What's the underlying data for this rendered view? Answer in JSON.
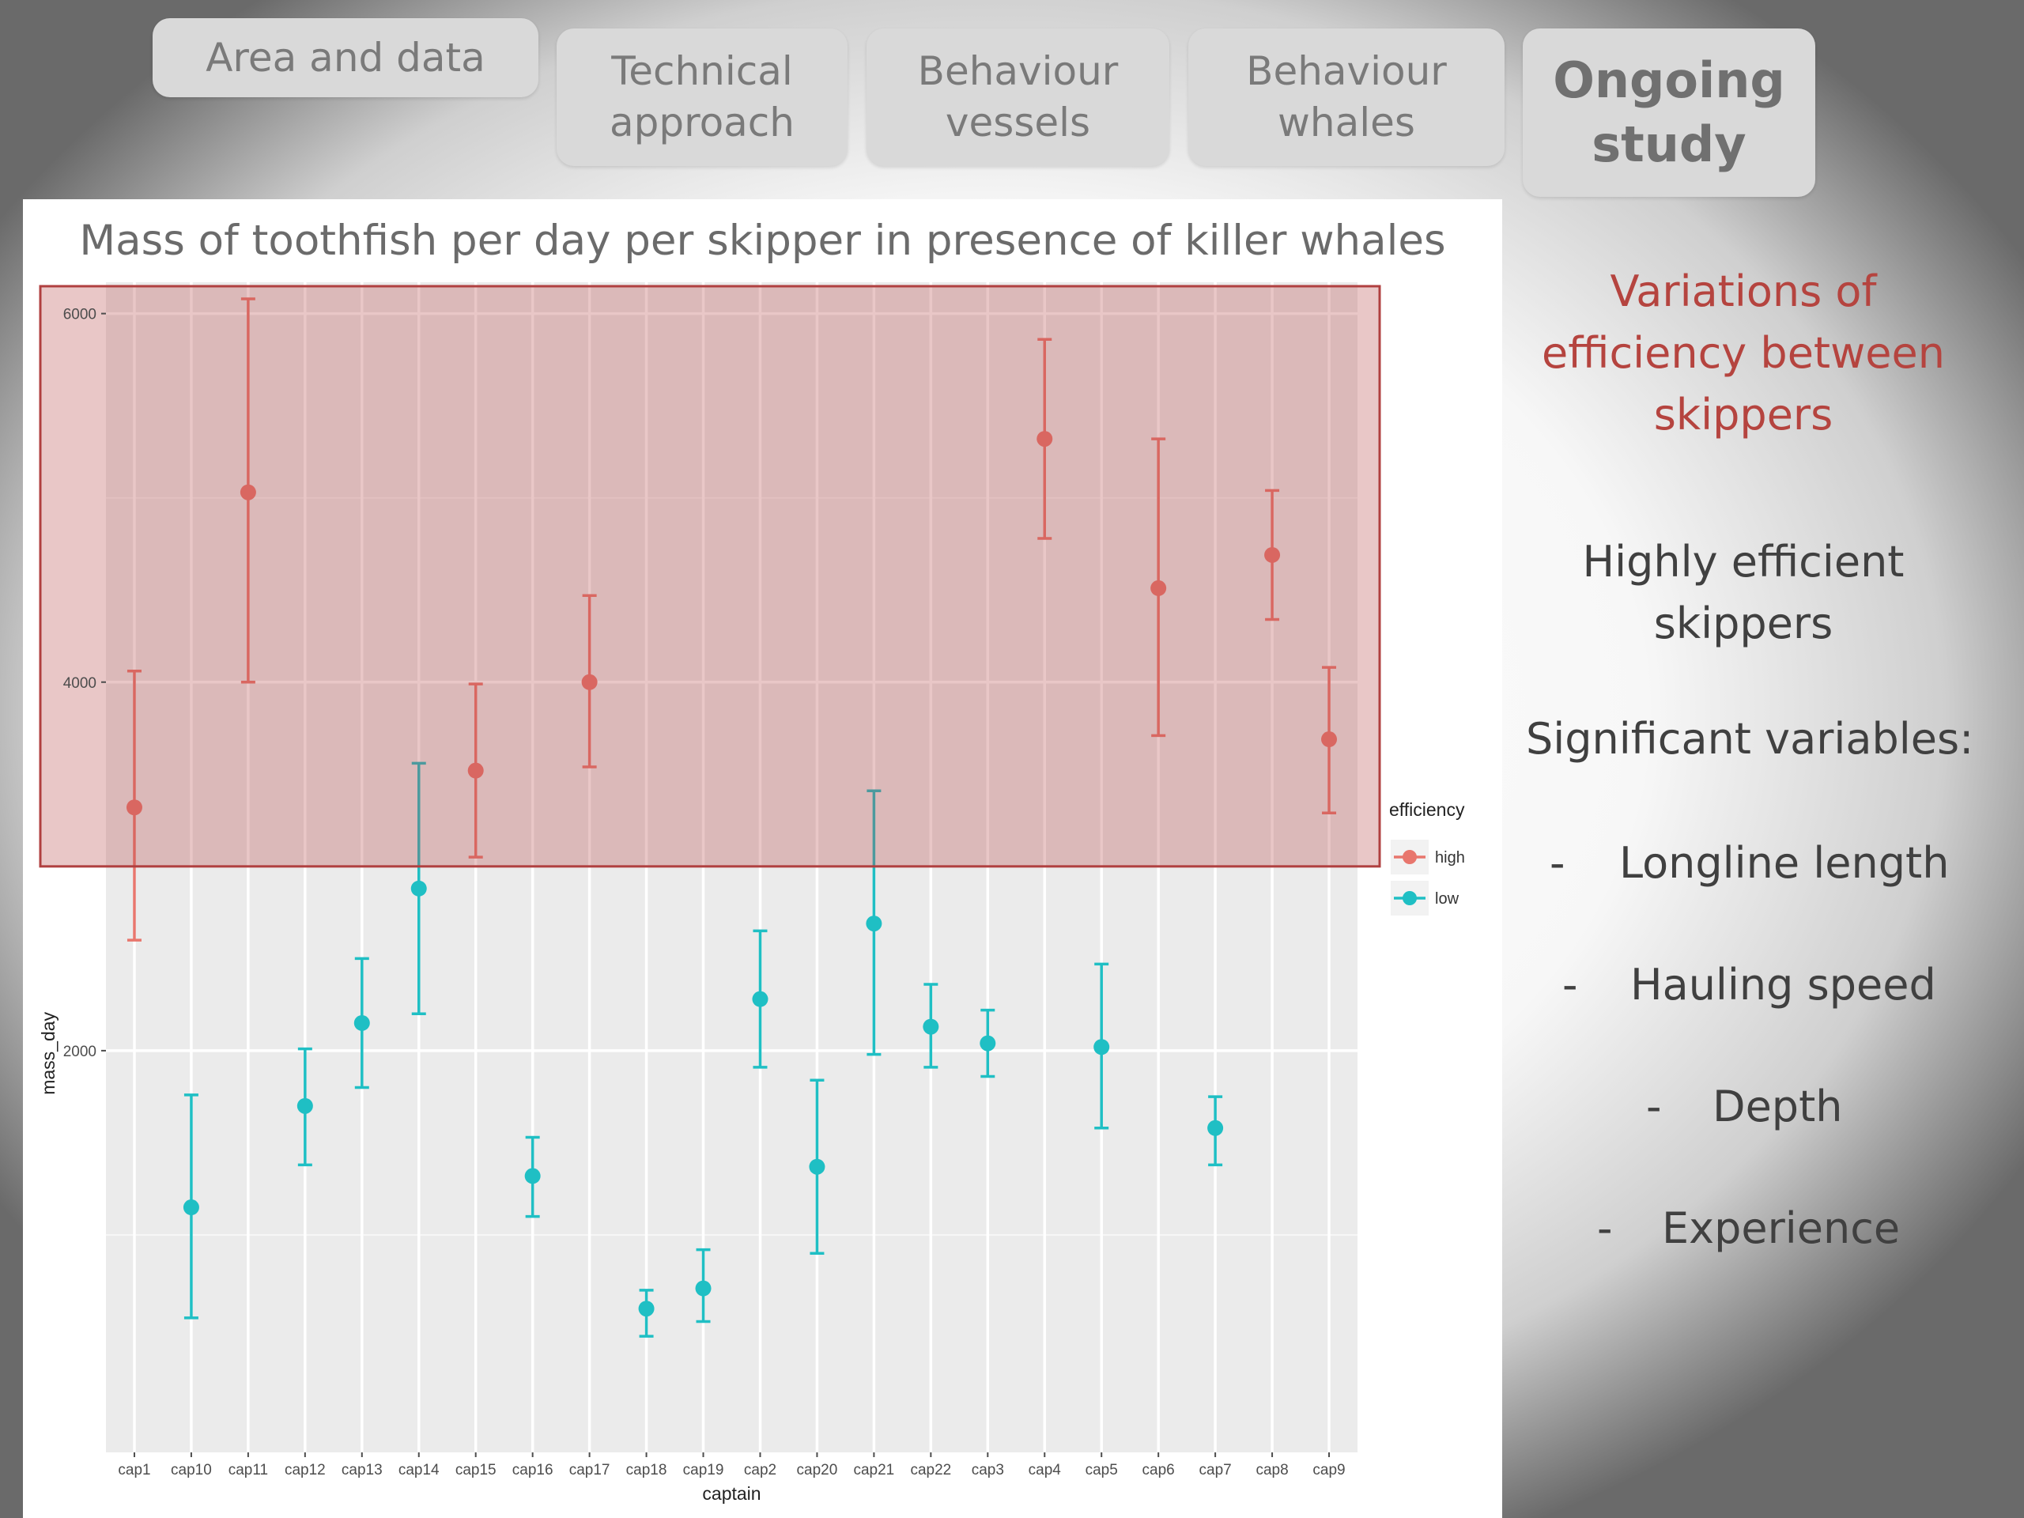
{
  "nav": {
    "tabs": [
      {
        "label": "Area and data",
        "active": false
      },
      {
        "label": "Technical\napproach",
        "active": false
      },
      {
        "label": "Behaviour\nvessels",
        "active": false
      },
      {
        "label": "Behaviour\nwhales",
        "active": false
      },
      {
        "label": "Ongoing\nstudy",
        "active": true
      }
    ]
  },
  "side": {
    "heading": "Variations of efficiency between skippers",
    "subheading": "Highly efficient skippers",
    "variables_label": "Significant variables:",
    "bullets": [
      "Longline length",
      "Hauling speed",
      "Depth",
      "Experience"
    ],
    "dash": "-"
  },
  "chart_data": {
    "type": "scatter",
    "title": "Mass of toothfish per day per skipper in presence of killer whales",
    "xlabel": "captain",
    "ylabel": "mass_day",
    "categories": [
      "cap1",
      "cap10",
      "cap11",
      "cap12",
      "cap13",
      "cap14",
      "cap15",
      "cap16",
      "cap17",
      "cap18",
      "cap19",
      "cap2",
      "cap20",
      "cap21",
      "cap22",
      "cap3",
      "cap4",
      "cap5",
      "cap6",
      "cap7",
      "cap8",
      "cap9"
    ],
    "ylim": [
      -180,
      6170
    ],
    "yticks": [
      2000,
      4000,
      6000
    ],
    "grid": true,
    "legend": {
      "title": "efficiency",
      "position": "right",
      "entries": [
        "high",
        "low"
      ]
    },
    "colors": {
      "high": "#e8766d",
      "low": "#1fbfc4"
    },
    "series": [
      {
        "name": "high",
        "points": [
          {
            "x": "cap1",
            "y": 3320,
            "low": 2600,
            "high": 4060
          },
          {
            "x": "cap11",
            "y": 5030,
            "low": 4000,
            "high": 6080
          },
          {
            "x": "cap15",
            "y": 3520,
            "low": 3050,
            "high": 3990
          },
          {
            "x": "cap17",
            "y": 4000,
            "low": 3540,
            "high": 4470
          },
          {
            "x": "cap4",
            "y": 5320,
            "low": 4780,
            "high": 5860
          },
          {
            "x": "cap6",
            "y": 4510,
            "low": 3710,
            "high": 5320
          },
          {
            "x": "cap8",
            "y": 4690,
            "low": 4340,
            "high": 5040
          },
          {
            "x": "cap9",
            "y": 3690,
            "low": 3290,
            "high": 4080
          }
        ]
      },
      {
        "name": "low",
        "points": [
          {
            "x": "cap10",
            "y": 1150,
            "low": 550,
            "high": 1760
          },
          {
            "x": "cap12",
            "y": 1700,
            "low": 1380,
            "high": 2010
          },
          {
            "x": "cap13",
            "y": 2150,
            "low": 1800,
            "high": 2500
          },
          {
            "x": "cap14",
            "y": 2880,
            "low": 2200,
            "high": 3560
          },
          {
            "x": "cap16",
            "y": 1320,
            "low": 1100,
            "high": 1530
          },
          {
            "x": "cap18",
            "y": 600,
            "low": 450,
            "high": 700
          },
          {
            "x": "cap19",
            "y": 710,
            "low": 530,
            "high": 920
          },
          {
            "x": "cap2",
            "y": 2280,
            "low": 1910,
            "high": 2650
          },
          {
            "x": "cap20",
            "y": 1370,
            "low": 900,
            "high": 1840
          },
          {
            "x": "cap21",
            "y": 2690,
            "low": 1980,
            "high": 3410
          },
          {
            "x": "cap22",
            "y": 2130,
            "low": 1910,
            "high": 2360
          },
          {
            "x": "cap3",
            "y": 2040,
            "low": 1860,
            "high": 2220
          },
          {
            "x": "cap5",
            "y": 2020,
            "low": 1580,
            "high": 2470
          },
          {
            "x": "cap7",
            "y": 1580,
            "low": 1380,
            "high": 1750
          }
        ]
      }
    ],
    "highlight": {
      "label": "Highly efficient skippers",
      "y_range": [
        3000,
        6170
      ]
    }
  }
}
